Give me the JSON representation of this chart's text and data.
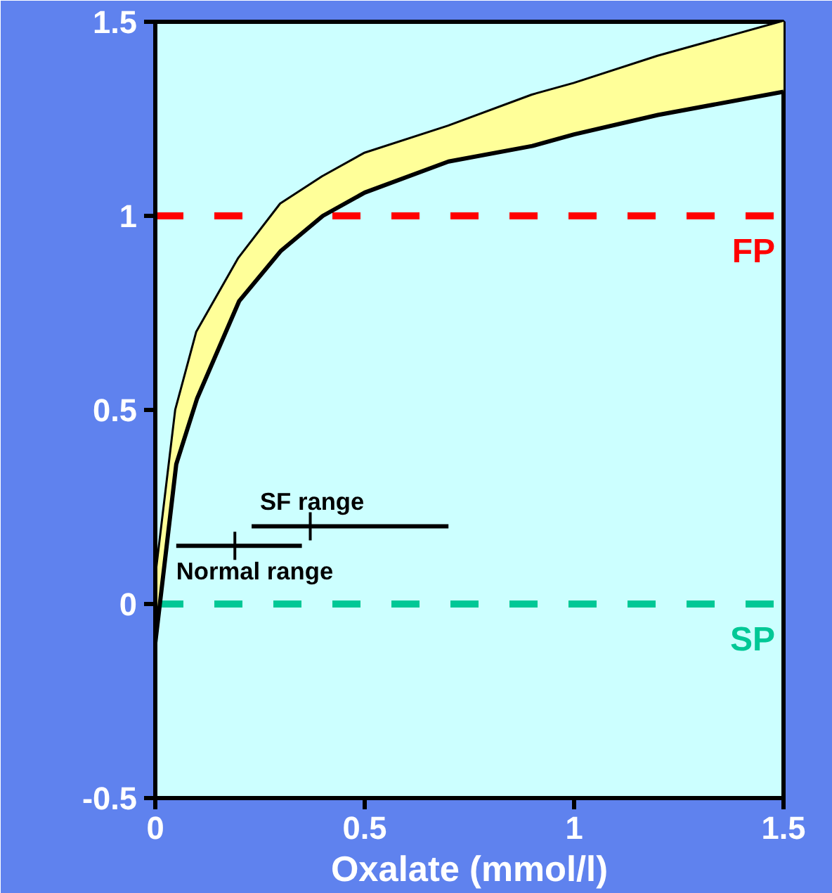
{
  "chart_data": {
    "type": "line",
    "xlabel": "Oxalate (mmol/l)",
    "xlim": [
      0,
      1.5
    ],
    "ylim": [
      -0.5,
      1.5
    ],
    "xticks": [
      0,
      0.5,
      1,
      1.5
    ],
    "yticks": [
      -0.5,
      0,
      0.5,
      1,
      1.5
    ],
    "grid": false,
    "legend": false,
    "series": [
      {
        "color": "#000000",
        "x": [
          0,
          0.05,
          0.1,
          0.2,
          0.3,
          0.4,
          0.5,
          0.7,
          0.9,
          1.0,
          1.2,
          1.5
        ],
        "values": [
          0.05,
          0.5,
          0.7,
          0.89,
          1.03,
          1.1,
          1.16,
          1.23,
          1.31,
          1.34,
          1.41,
          1.5
        ]
      },
      {
        "color": "#000000",
        "x": [
          0,
          0.05,
          0.1,
          0.2,
          0.3,
          0.4,
          0.5,
          0.7,
          0.9,
          1.0,
          1.2,
          1.5
        ],
        "values": [
          -0.1,
          0.36,
          0.53,
          0.78,
          0.91,
          1.0,
          1.06,
          1.14,
          1.18,
          1.21,
          1.26,
          1.32
        ],
        "upper": [
          0.05,
          0.5,
          0.7,
          0.89,
          1.03,
          1.1,
          1.16,
          1.23,
          1.31,
          1.34,
          1.41,
          1.5
        ],
        "lower": [
          -0.1,
          0.36,
          0.53,
          0.78,
          0.91,
          1.0,
          1.06,
          1.14,
          1.18,
          1.21,
          1.26,
          1.32
        ]
      },
      {
        "type": "scatter",
        "name": "SF range",
        "color": "#000000",
        "marker": "cross",
        "x": [
          0.37
        ],
        "values": [
          0.2
        ],
        "xerrors": [
          [
            0.23,
            0.7
          ]
        ]
      },
      {
        "type": "scatter",
        "name": "Normal range",
        "color": "#000000",
        "marker": "cross",
        "x": [
          0.19
        ],
        "values": [
          0.15
        ],
        "xerrors": [
          [
            0.05,
            0.35
          ]
        ]
      }
    ],
    "ref_lines": [
      {
        "axis": "y",
        "value": 1,
        "label": "FP",
        "color": "#ff0000",
        "line_style": "dashed"
      },
      {
        "axis": "y",
        "value": 0,
        "label": "SP",
        "color": "#00c896",
        "line_style": "dashed"
      }
    ]
  }
}
